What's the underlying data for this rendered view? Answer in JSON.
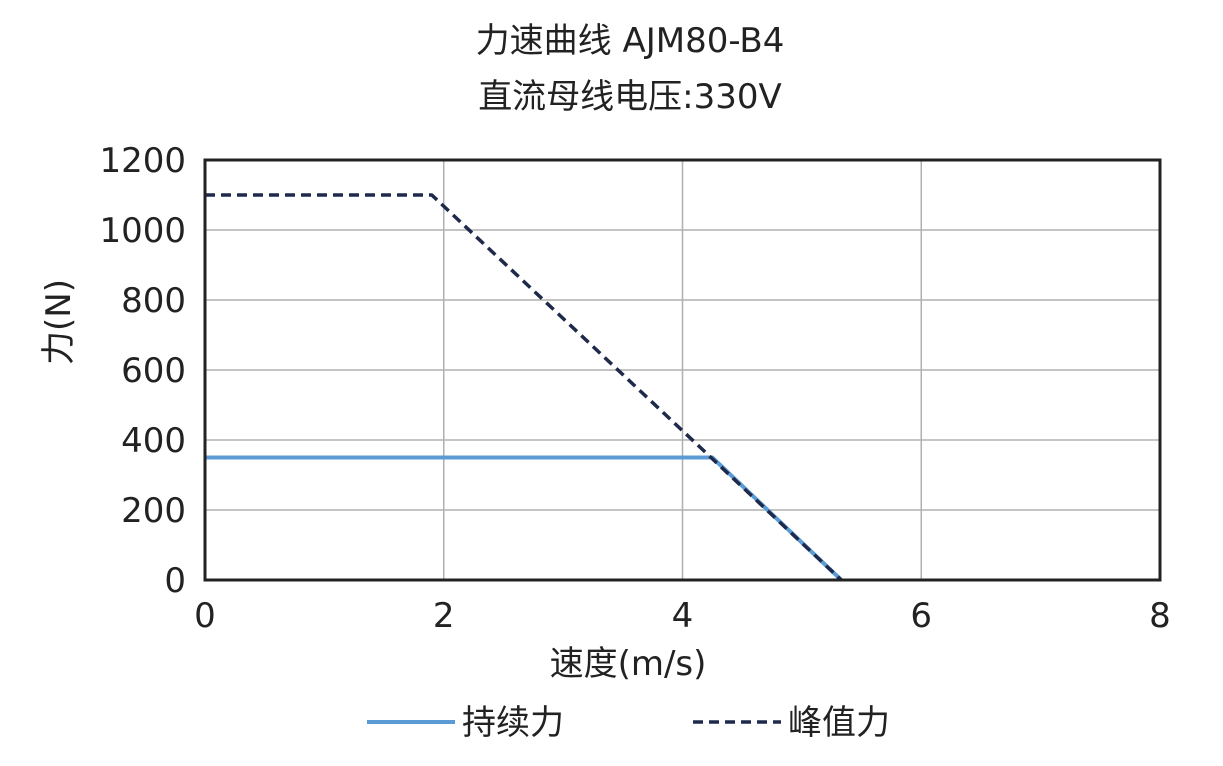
{
  "chart_data": {
    "type": "line",
    "title": "力速曲线 AJM80-B4",
    "subtitle": "直流母线电压:330V",
    "xlabel": "速度(m/s)",
    "ylabel": "力(N)",
    "xlim": [
      0,
      8
    ],
    "ylim": [
      0,
      1200
    ],
    "x_ticks": [
      "0",
      "2",
      "4",
      "6",
      "8"
    ],
    "y_ticks": [
      "0",
      "200",
      "400",
      "600",
      "800",
      "1000",
      "1200"
    ],
    "grid": true,
    "legend_position": "bottom",
    "series": [
      {
        "name": "持续力",
        "color": "#5b9bd5",
        "style": "solid",
        "points": [
          [
            0,
            350
          ],
          [
            4.25,
            350
          ],
          [
            5.33,
            0
          ]
        ]
      },
      {
        "name": "峰值力",
        "color": "#1f2a4a",
        "style": "dashed",
        "points": [
          [
            0,
            1100
          ],
          [
            1.9,
            1100
          ],
          [
            5.33,
            0
          ]
        ]
      }
    ]
  }
}
